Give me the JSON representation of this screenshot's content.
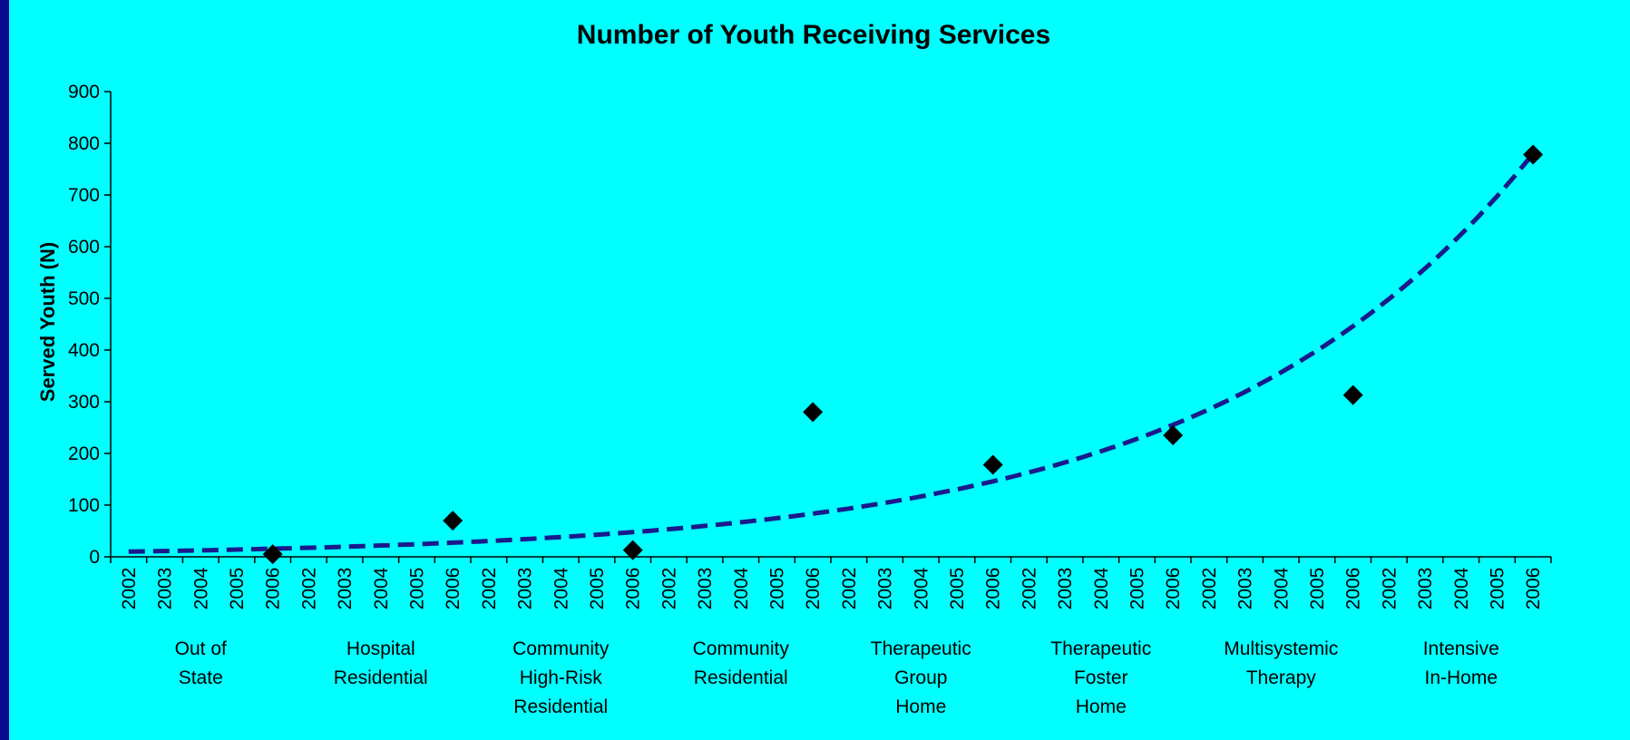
{
  "chart_data": {
    "type": "scatter",
    "title": "Number of Youth Receiving Services",
    "ylabel": "Served Youth (N)",
    "xlabel": "",
    "ylim": [
      0,
      900
    ],
    "yticks": [
      "0",
      "100",
      "200",
      "300",
      "400",
      "500",
      "600",
      "700",
      "800",
      "900"
    ],
    "years": [
      "2002",
      "2003",
      "2004",
      "2005",
      "2006"
    ],
    "groups": [
      {
        "label": [
          "Out of",
          "State"
        ],
        "values": [
          null,
          null,
          null,
          null,
          5
        ]
      },
      {
        "label": [
          "Hospital",
          "Residential"
        ],
        "values": [
          null,
          null,
          null,
          null,
          70
        ]
      },
      {
        "label": [
          "Community",
          "High-Risk",
          "Residential"
        ],
        "values": [
          null,
          null,
          null,
          null,
          13
        ]
      },
      {
        "label": [
          "Community",
          "Residential"
        ],
        "values": [
          null,
          null,
          null,
          null,
          280
        ]
      },
      {
        "label": [
          "Therapeutic",
          "Group",
          "Home"
        ],
        "values": [
          null,
          null,
          null,
          null,
          178
        ]
      },
      {
        "label": [
          "Therapeutic",
          "Foster",
          "Home"
        ],
        "values": [
          null,
          null,
          null,
          null,
          235
        ]
      },
      {
        "label": [
          "Multisystemic",
          "Therapy"
        ],
        "values": [
          null,
          null,
          null,
          null,
          313
        ]
      },
      {
        "label": [
          "Intensive",
          "In-Home"
        ],
        "values": [
          null,
          null,
          null,
          null,
          778
        ]
      }
    ],
    "trendline": {
      "type": "exponential",
      "start_value": 10,
      "end_value": 780,
      "style": "dashed"
    },
    "grid": false,
    "legend": "none",
    "colors": {
      "background": "#00ffff",
      "frame": "#0a0a8c",
      "marker": "#000000",
      "trend": "#1a1a8c"
    }
  }
}
